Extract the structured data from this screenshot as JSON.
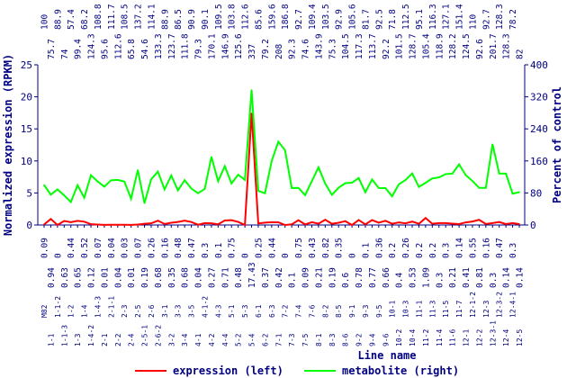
{
  "chart_data": {
    "type": "line",
    "xlabel": "Line name",
    "ylabel_left": "Normalized expression (RPKM)",
    "ylabel_right": "Percent of control",
    "ylim_left": [
      0,
      25
    ],
    "yticks_left": [
      "0",
      "5",
      "10",
      "15",
      "20",
      "25"
    ],
    "ylim_right": [
      0,
      400
    ],
    "yticks_right": [
      "0",
      "80",
      "160",
      "240",
      "320",
      "400"
    ],
    "grid": false,
    "legend_position": "bottom",
    "categories": [
      "M82",
      "1-1",
      "1-1-2",
      "1-1-3",
      "1-2",
      "1-3",
      "1-4",
      "1-4-2",
      "1-4-3",
      "2-1",
      "2-1-1",
      "2-2",
      "2-3",
      "2-4",
      "2-5",
      "2-5-1",
      "2-6",
      "2-6-2",
      "3-1",
      "3-2",
      "3-3",
      "3-4",
      "3-5",
      "4-1",
      "4-1-2",
      "4-2",
      "4-3",
      "4-4",
      "5-1",
      "5-2",
      "5-3",
      "5-4",
      "6-1",
      "6-2",
      "6-3",
      "7-1",
      "7-2",
      "7-3",
      "7-4",
      "7-5",
      "7-6",
      "8-1",
      "8-2",
      "8-3",
      "8-5",
      "8-6",
      "9-1",
      "9-2",
      "9-3",
      "9-4",
      "9-5",
      "9-6",
      "10-1",
      "10-2",
      "10-3",
      "10-4",
      "11-1",
      "11-2",
      "11-3",
      "11-4",
      "11-5",
      "11-6",
      "11-7",
      "12-1",
      "12-1-2",
      "12-2",
      "12-3",
      "12-3-1",
      "12-3-2",
      "12-4",
      "12-4-1",
      "12-5"
    ],
    "series": [
      {
        "name": "expression (left)",
        "axis": "left",
        "color": "#ff0000",
        "values": [
          0.09,
          0.94,
          0.0,
          0.63,
          0.44,
          0.65,
          0.52,
          0.12,
          0.07,
          0.01,
          0.04,
          0.04,
          0.03,
          0.01,
          0.07,
          0.19,
          0.26,
          0.68,
          0.16,
          0.35,
          0.48,
          0.68,
          0.47,
          0.04,
          0.3,
          0.27,
          0.1,
          0.71,
          0.75,
          0.48,
          0.0,
          17.43,
          0.25,
          0.37,
          0.44,
          0.42,
          0.0,
          0.1,
          0.75,
          0.09,
          0.43,
          0.21,
          0.82,
          0.19,
          0.35,
          0.6,
          0.0,
          0.78,
          0.1,
          0.77,
          0.36,
          0.66,
          0.2,
          0.4,
          0.26,
          0.53,
          0.2,
          1.09,
          0.2,
          0.3,
          0.3,
          0.21,
          0.14,
          0.41,
          0.55,
          0.81,
          0.16,
          0.3,
          0.47,
          0.14,
          0.3,
          0.14
        ]
      },
      {
        "name": "metabolite (right)",
        "axis": "right",
        "color": "#00ff00",
        "values": [
          100,
          75.7,
          88.9,
          74,
          57.4,
          99.4,
          68.2,
          124.3,
          108.8,
          95.6,
          111.7,
          112.6,
          108.5,
          65.8,
          137.2,
          54.6,
          114.1,
          133.3,
          88.9,
          123.7,
          86.5,
          111.8,
          90.9,
          79.3,
          90.1,
          170.1,
          109.5,
          146.9,
          103.8,
          125.6,
          112.6,
          337,
          85.6,
          79.2,
          159.6,
          208,
          186.8,
          92.3,
          92.7,
          74.6,
          109.4,
          143.9,
          103.5,
          75.3,
          92.9,
          104.5,
          105.6,
          117.3,
          81.7,
          113.7,
          92.5,
          92.2,
          71.8,
          101.5,
          112.5,
          128.7,
          95.1,
          105.4,
          116.3,
          118.9,
          127.1,
          128.2,
          151.4,
          124.5,
          110,
          92.6,
          92.7,
          201.7,
          128.3,
          128.3,
          78.2,
          82
        ]
      }
    ]
  },
  "colors": {
    "axis": "#000080",
    "expression": "#ff0000",
    "metabolite": "#00ff00"
  }
}
